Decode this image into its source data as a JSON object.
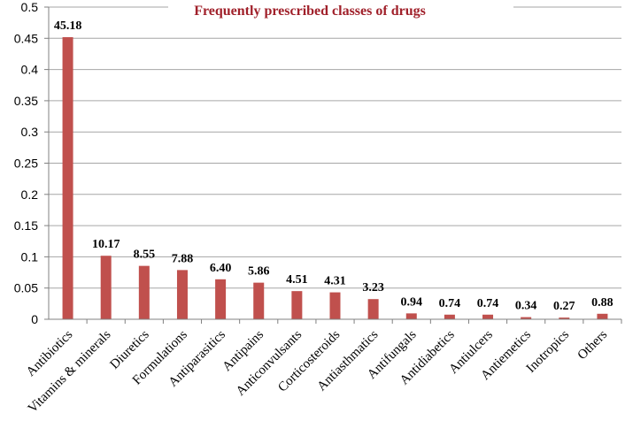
{
  "chart_data": {
    "type": "bar",
    "title": "Frequently prescribed classes of drugs",
    "xlabel": "",
    "ylabel": "",
    "ylim": [
      0,
      0.5
    ],
    "yticks": [
      "0",
      "0.05",
      "0.1",
      "0.15",
      "0.2",
      "0.25",
      "0.3",
      "0.35",
      "0.4",
      "0.45",
      "0.5"
    ],
    "grid": true,
    "categories": [
      "Antibiotics",
      "Vitamins & minerals",
      "Diuretics",
      "Formulations",
      "Antiparasitics",
      "Antipains",
      "Anticonvulsants",
      "Corticosteroids",
      "Antiasthmatics",
      "Antifungals",
      "Antidiabetics",
      "Antiulcers",
      "Antiemetics",
      "Inotropics",
      "Others"
    ],
    "values": [
      0.4518,
      0.1017,
      0.0855,
      0.0788,
      0.064,
      0.0586,
      0.0451,
      0.0431,
      0.0323,
      0.0094,
      0.0074,
      0.0074,
      0.0034,
      0.0027,
      0.0088
    ],
    "data_labels": [
      "45.18",
      "10.17",
      "8.55",
      "7.88",
      "6.40",
      "5.86",
      "4.51",
      "4.31",
      "3.23",
      "0.94",
      "0.74",
      "0.74",
      "0.34",
      "0.27",
      "0.88"
    ],
    "colors": {
      "bar": "#c0504d",
      "title": "#a0202a",
      "grid": "#a6a6a6"
    }
  }
}
